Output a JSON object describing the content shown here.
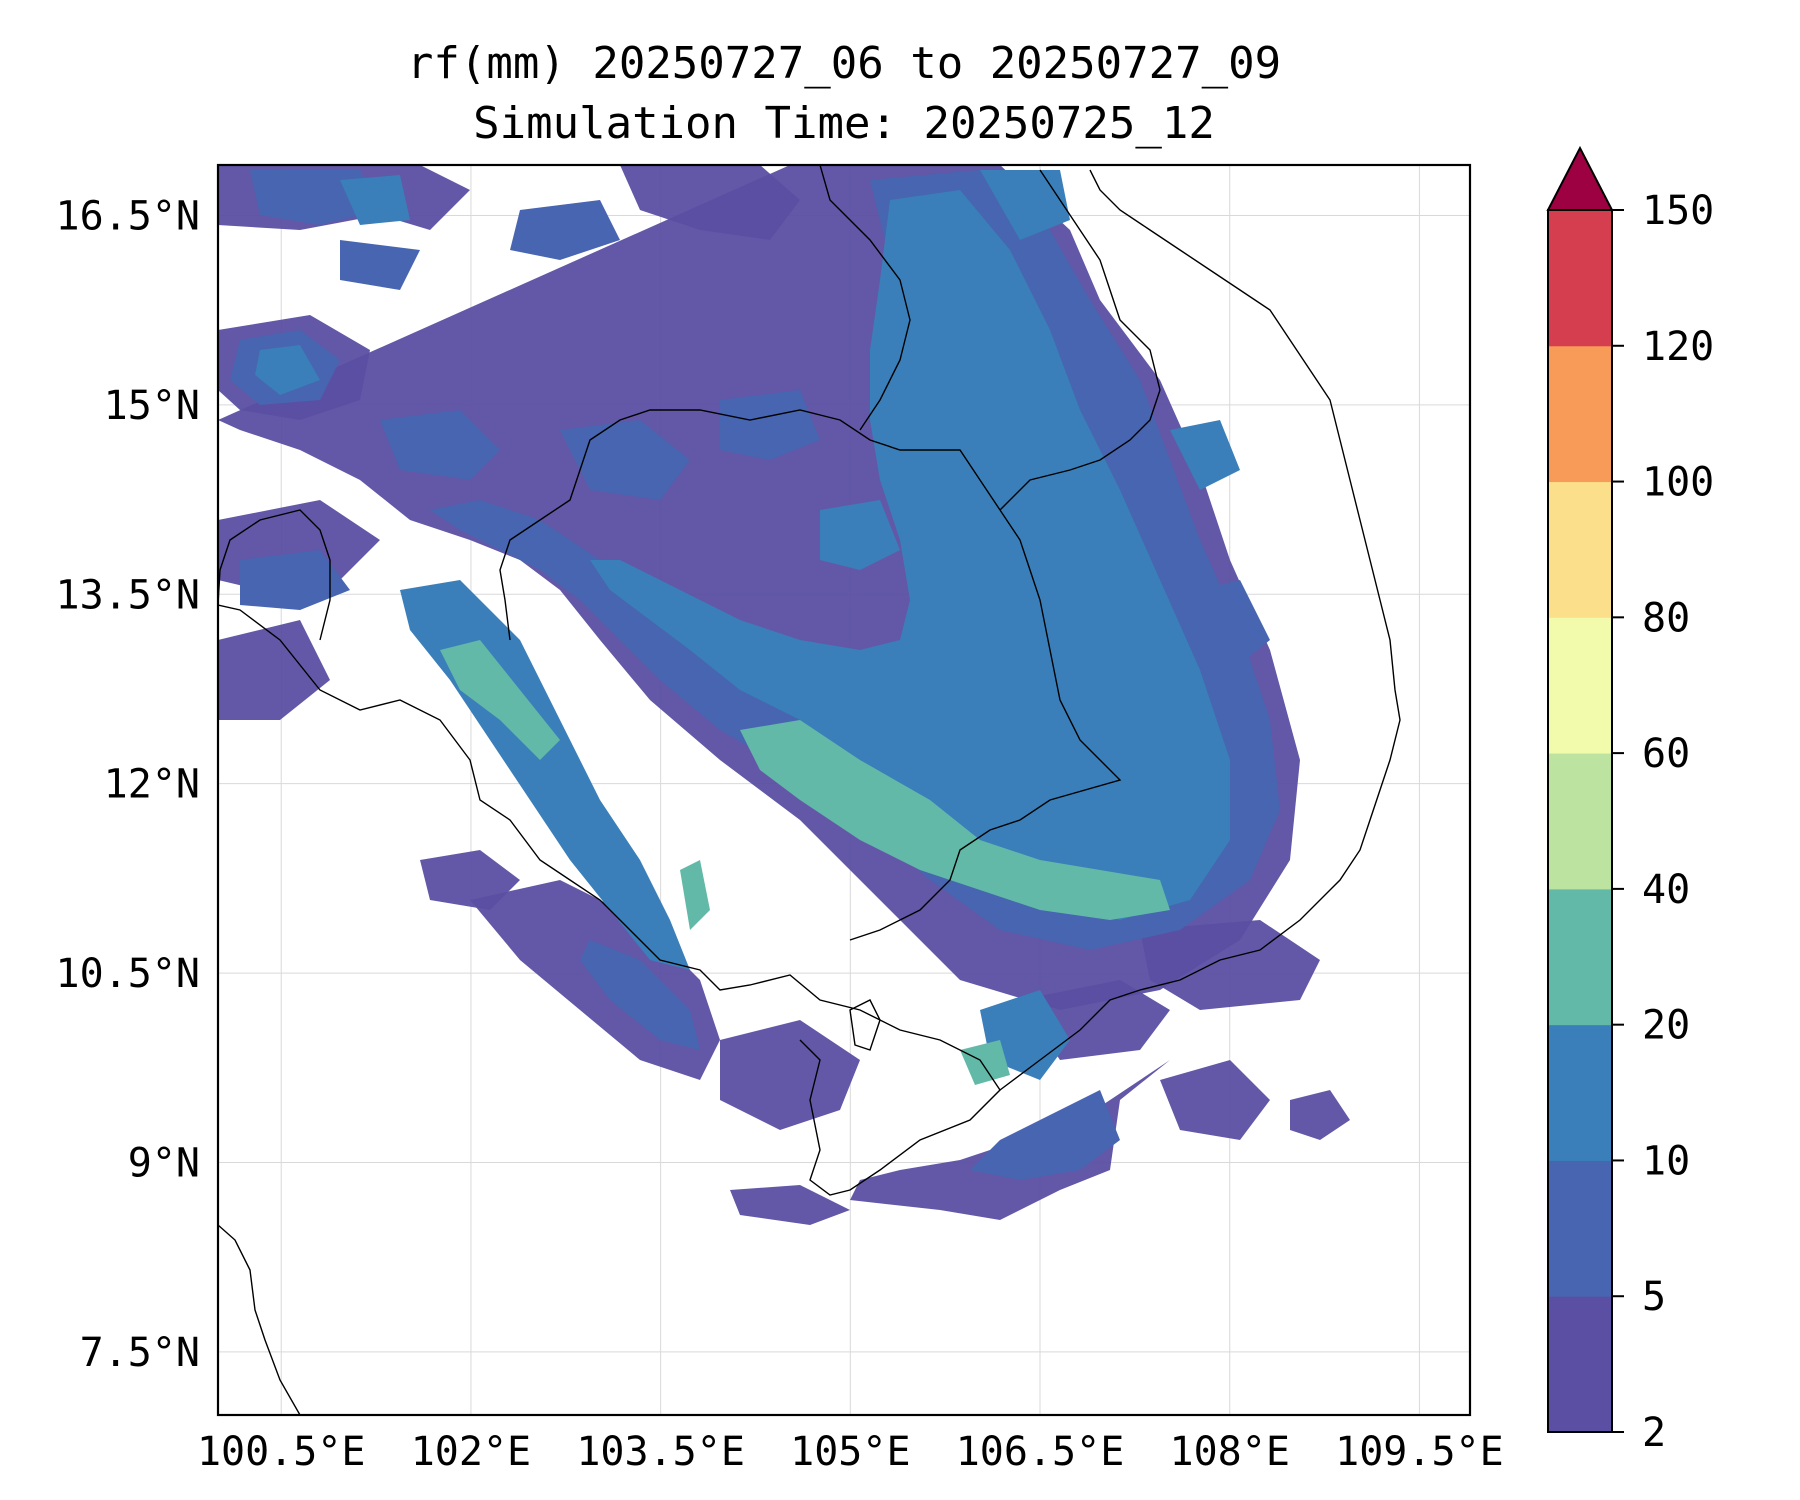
{
  "title_line_1": "rf(mm) 20250727_06 to 20250727_09",
  "title_line_2": "Simulation Time: 20250725_12",
  "map": {
    "lon_range": [
      100.0,
      109.9
    ],
    "lat_range": [
      7.0,
      16.9
    ],
    "lon_ticks": [
      {
        "value": 100.5,
        "label": "100.5°E"
      },
      {
        "value": 102.0,
        "label": "102°E"
      },
      {
        "value": 103.5,
        "label": "103.5°E"
      },
      {
        "value": 105.0,
        "label": "105°E"
      },
      {
        "value": 106.5,
        "label": "106.5°E"
      },
      {
        "value": 108.0,
        "label": "108°E"
      },
      {
        "value": 109.5,
        "label": "109.5°E"
      }
    ],
    "lat_ticks": [
      {
        "value": 16.5,
        "label": "16.5°N"
      },
      {
        "value": 15.0,
        "label": "15°N"
      },
      {
        "value": 13.5,
        "label": "13.5°N"
      },
      {
        "value": 12.0,
        "label": "12°N"
      },
      {
        "value": 10.5,
        "label": "10.5°N"
      },
      {
        "value": 9.0,
        "label": "9°N"
      },
      {
        "value": 7.5,
        "label": "7.5°N"
      }
    ],
    "gridlines": true,
    "extend": "max"
  },
  "colorbar": {
    "levels": [
      "2",
      "5",
      "10",
      "20",
      "40",
      "60",
      "80",
      "100",
      "120",
      "150"
    ],
    "colors": [
      "#5a4fa2",
      "#4765b0",
      "#3a7fb9",
      "#62b9a8",
      "#bce3a0",
      "#f2faab",
      "#fbdf8b",
      "#f89b59",
      "#d53e4f"
    ],
    "extend_color": "#9e0142"
  }
}
